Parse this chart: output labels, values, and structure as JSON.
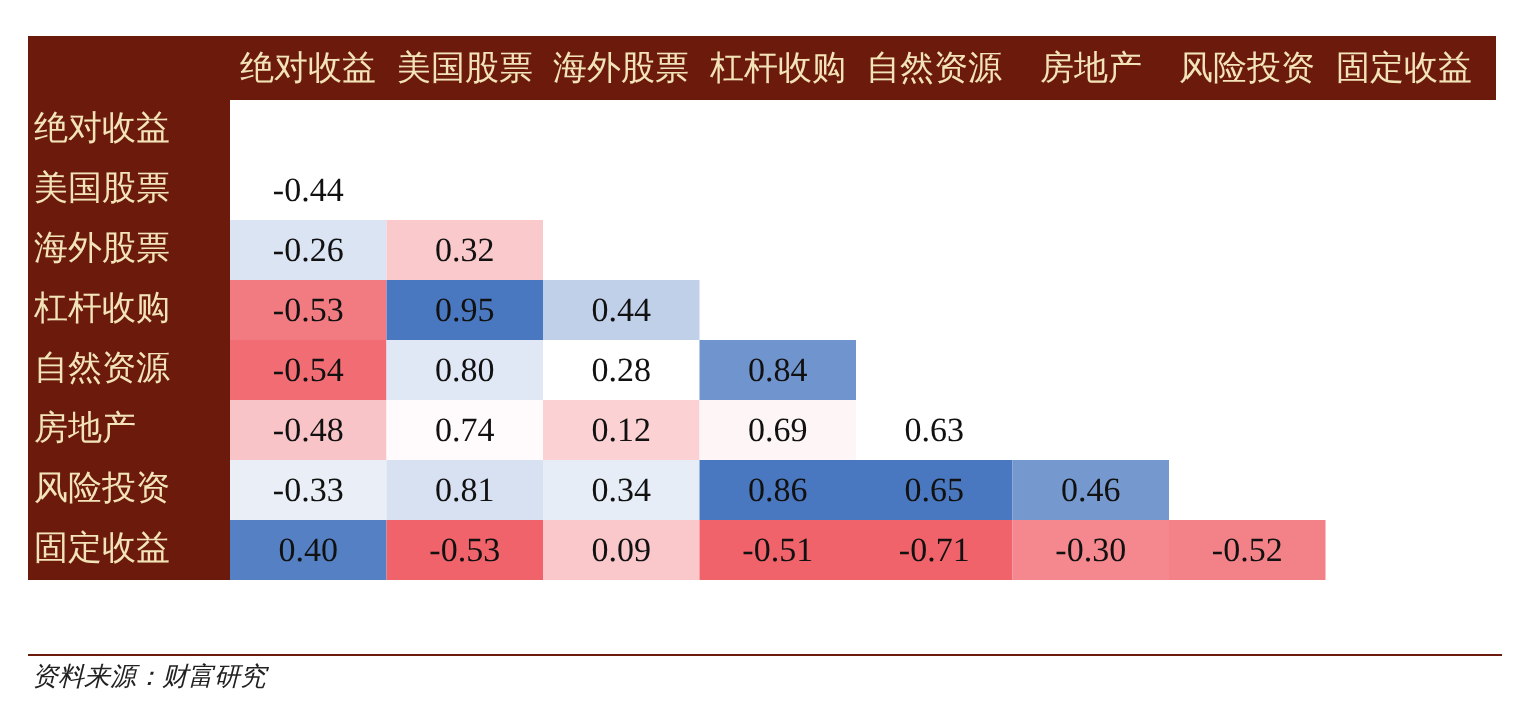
{
  "chart_data": {
    "type": "heatmap",
    "categories": [
      "绝对收益",
      "美国股票",
      "海外股票",
      "杠杆收购",
      "自然资源",
      "房地产",
      "风险投资",
      "固定收益"
    ],
    "y_categories": [
      "绝对收益",
      "美国股票",
      "海外股票",
      "杠杆收购",
      "自然资源",
      "房地产",
      "风险投资",
      "固定收益"
    ],
    "cells": [
      [
        null,
        null,
        null,
        null,
        null,
        null,
        null,
        null
      ],
      [
        -0.44,
        null,
        null,
        null,
        null,
        null,
        null,
        null
      ],
      [
        -0.26,
        0.32,
        null,
        null,
        null,
        null,
        null,
        null
      ],
      [
        -0.53,
        0.95,
        0.44,
        null,
        null,
        null,
        null,
        null
      ],
      [
        -0.54,
        0.8,
        0.28,
        0.84,
        null,
        null,
        null,
        null
      ],
      [
        -0.48,
        0.74,
        0.12,
        0.69,
        0.63,
        null,
        null,
        null
      ],
      [
        -0.33,
        0.81,
        0.34,
        0.86,
        0.65,
        0.46,
        null,
        null
      ],
      [
        0.4,
        -0.53,
        0.09,
        -0.51,
        -0.71,
        -0.3,
        -0.52,
        null
      ]
    ],
    "cell_labels": [
      [
        null,
        null,
        null,
        null,
        null,
        null,
        null,
        null
      ],
      [
        "-0.44",
        null,
        null,
        null,
        null,
        null,
        null,
        null
      ],
      [
        "-0.26",
        "0.32",
        null,
        null,
        null,
        null,
        null,
        null
      ],
      [
        "-0.53",
        "0.95",
        "0.44",
        null,
        null,
        null,
        null,
        null
      ],
      [
        "-0.54",
        "0.80",
        "0.28",
        "0.84",
        null,
        null,
        null,
        null
      ],
      [
        "-0.48",
        "0.74",
        "0.12",
        "0.69",
        "0.63",
        null,
        null,
        null
      ],
      [
        "-0.33",
        "0.81",
        "0.34",
        "0.86",
        "0.65",
        "0.46",
        null,
        null
      ],
      [
        "0.40",
        "-0.53",
        "0.09",
        "-0.51",
        "-0.71",
        "-0.30",
        "-0.52",
        null
      ]
    ],
    "annotations": [
      "资料来源：财富研究"
    ]
  }
}
